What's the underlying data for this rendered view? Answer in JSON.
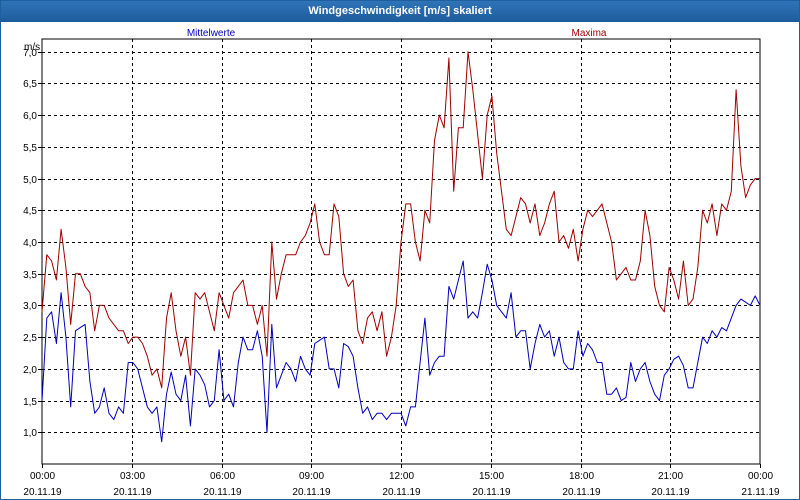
{
  "window": {
    "title": "Windgeschwindigkeit [m/s] skaliert"
  },
  "colors": {
    "mean": "#0000c0",
    "max": "#a00000",
    "grid": "#000000",
    "axis_text": "#000000"
  },
  "chart_data": {
    "type": "line",
    "title": "Windgeschwindigkeit [m/s] skaliert",
    "ylabel": "m/s",
    "xlabel": "",
    "ylim": [
      0.5,
      7.2
    ],
    "xlim": [
      "20.11.19 00:00",
      "21.11.19 00:00"
    ],
    "grid": true,
    "legend_placement": "top",
    "y_ticks": [
      "1,0",
      "1,5",
      "2,0",
      "2,5",
      "3,0",
      "3,5",
      "4,0",
      "4,5",
      "5,0",
      "5,5",
      "6,0",
      "6,5",
      "7,0"
    ],
    "y_tick_values": [
      1.0,
      1.5,
      2.0,
      2.5,
      3.0,
      3.5,
      4.0,
      4.5,
      5.0,
      5.5,
      6.0,
      6.5,
      7.0
    ],
    "x_tick_times": [
      "00:00",
      "03:00",
      "06:00",
      "09:00",
      "12:00",
      "15:00",
      "18:00",
      "21:00",
      "00:00"
    ],
    "x_tick_dates": [
      "20.11.19",
      "20.11.19",
      "20.11.19",
      "20.11.19",
      "20.11.19",
      "20.11.19",
      "20.11.19",
      "20.11.19",
      "21.11.19"
    ],
    "series": [
      {
        "name": "Mittelwerte",
        "color": "#0000c0",
        "values": [
          1.5,
          2.8,
          2.9,
          2.4,
          3.2,
          2.5,
          1.4,
          2.6,
          2.65,
          2.7,
          1.8,
          1.3,
          1.4,
          1.7,
          1.3,
          1.2,
          1.4,
          1.3,
          2.1,
          2.1,
          2.0,
          1.7,
          1.4,
          1.3,
          1.4,
          0.85,
          1.6,
          1.95,
          1.6,
          1.5,
          1.9,
          1.1,
          2.0,
          1.9,
          1.75,
          1.4,
          1.5,
          2.3,
          1.5,
          1.6,
          1.4,
          2.1,
          2.5,
          2.3,
          2.3,
          2.6,
          2.2,
          1.0,
          2.7,
          1.7,
          1.9,
          2.1,
          2.0,
          1.8,
          2.2,
          2.0,
          1.9,
          2.4,
          2.45,
          2.5,
          2.0,
          2.0,
          1.7,
          2.4,
          2.35,
          2.2,
          1.7,
          1.3,
          1.4,
          1.2,
          1.3,
          1.3,
          1.2,
          1.3,
          1.3,
          1.3,
          1.1,
          1.4,
          1.4,
          2.1,
          2.8,
          1.9,
          2.1,
          2.2,
          2.2,
          3.3,
          3.1,
          3.4,
          3.7,
          2.8,
          2.9,
          2.8,
          3.2,
          3.65,
          3.4,
          3.0,
          2.9,
          2.8,
          3.2,
          2.5,
          2.6,
          2.6,
          2.0,
          2.4,
          2.7,
          2.5,
          2.6,
          2.2,
          2.5,
          2.1,
          2.0,
          2.0,
          2.6,
          2.2,
          2.4,
          2.3,
          2.1,
          2.1,
          1.6,
          1.6,
          1.7,
          1.5,
          1.55,
          2.1,
          1.8,
          2.0,
          2.1,
          1.8,
          1.6,
          1.5,
          1.9,
          2.0,
          2.15,
          2.2,
          2.05,
          1.7,
          1.7,
          2.1,
          2.5,
          2.4,
          2.6,
          2.5,
          2.65,
          2.6,
          2.8,
          3.0,
          3.1,
          3.05,
          3.0,
          3.15,
          3.0
        ]
      },
      {
        "name": "Maxima",
        "color": "#a00000",
        "values": [
          2.9,
          3.8,
          3.7,
          3.4,
          4.2,
          3.6,
          2.7,
          3.5,
          3.5,
          3.3,
          3.2,
          2.6,
          3.0,
          3.0,
          2.8,
          2.7,
          2.6,
          2.6,
          2.4,
          2.5,
          2.5,
          2.4,
          2.2,
          1.9,
          2.0,
          1.7,
          2.8,
          3.2,
          2.6,
          2.2,
          2.5,
          1.9,
          3.2,
          3.1,
          3.2,
          2.9,
          2.6,
          3.2,
          3.0,
          2.8,
          3.2,
          3.3,
          3.4,
          3.0,
          3.0,
          2.7,
          3.0,
          2.2,
          4.0,
          3.1,
          3.5,
          3.8,
          3.8,
          3.8,
          4.0,
          4.1,
          4.3,
          4.6,
          4.0,
          3.8,
          3.8,
          4.6,
          4.4,
          3.5,
          3.3,
          3.4,
          2.6,
          2.4,
          2.8,
          2.9,
          2.6,
          2.9,
          2.2,
          2.5,
          3.0,
          4.0,
          4.6,
          4.6,
          4.0,
          3.7,
          4.5,
          4.3,
          5.6,
          6.0,
          5.8,
          6.9,
          4.8,
          5.8,
          5.8,
          7.0,
          6.4,
          5.7,
          5.0,
          6.0,
          6.3,
          5.4,
          4.8,
          4.2,
          4.1,
          4.4,
          4.7,
          4.6,
          4.3,
          4.6,
          4.1,
          4.3,
          4.6,
          4.8,
          4.0,
          4.1,
          3.9,
          4.2,
          3.7,
          4.2,
          4.5,
          4.4,
          4.5,
          4.6,
          4.3,
          4.0,
          3.4,
          3.5,
          3.6,
          3.4,
          3.4,
          3.7,
          4.5,
          4.1,
          3.3,
          3.0,
          2.9,
          3.6,
          3.4,
          3.1,
          3.7,
          3.0,
          3.1,
          3.6,
          4.5,
          4.3,
          4.6,
          4.1,
          4.6,
          4.5,
          4.8,
          6.4,
          5.2,
          4.7,
          4.9,
          5.0,
          5.0
        ]
      }
    ]
  }
}
